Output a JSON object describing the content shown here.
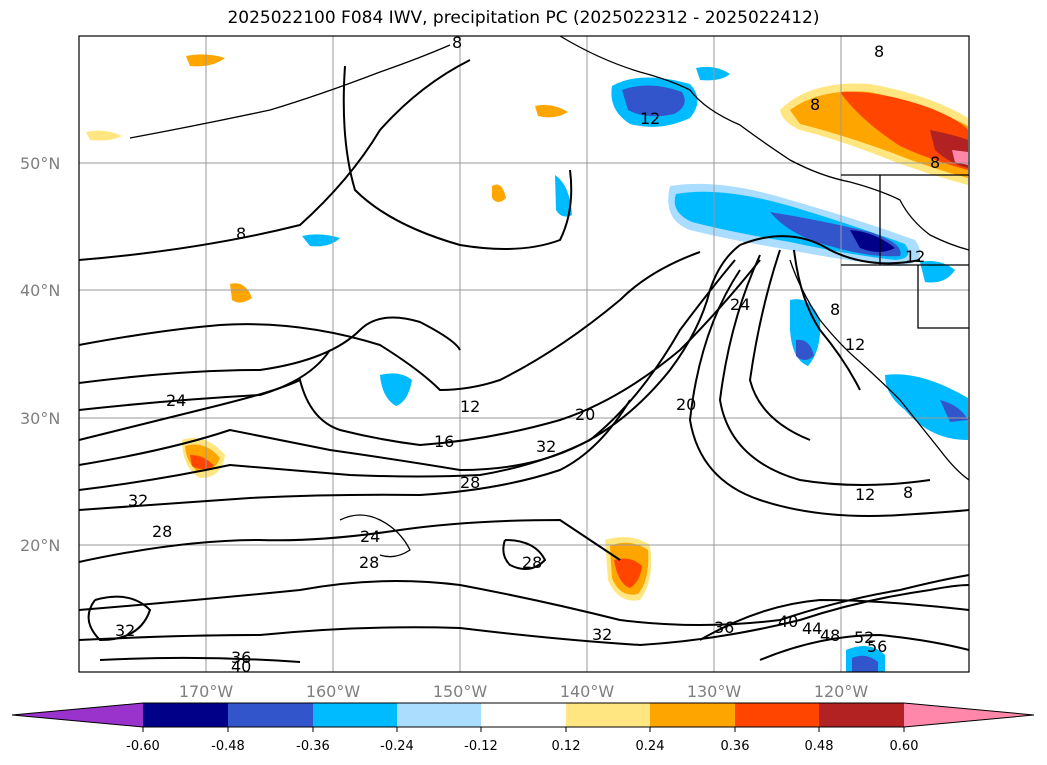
{
  "title": "2025022100 F084 IWV, precipitation PC (2025022312 - 2025022412)",
  "colors": {
    "land_coast": "#000000",
    "grid": "#999999",
    "tick_label": "#7f7f7f",
    "bins": [
      "#9933cc",
      "#000088",
      "#3355cc",
      "#00bbff",
      "#aaddff",
      "#ffffff",
      "#ffe680",
      "#ffa500",
      "#ff4500",
      "#b22222",
      "#ff88aa"
    ]
  },
  "map": {
    "projection": "PlateCarree",
    "lon_range": [
      "180°",
      "110°W"
    ],
    "lat_range": [
      "10°N",
      "60°N"
    ],
    "lat_ticks": [
      "50°N",
      "40°N",
      "30°N",
      "20°N"
    ],
    "lon_ticks": [
      "170°W",
      "160°W",
      "150°W",
      "140°W",
      "130°W",
      "120°W"
    ],
    "grid": true,
    "contour_variable": "IWV",
    "contour_labels": [
      "8",
      "12",
      "24",
      "8",
      "24",
      "12",
      "16",
      "20",
      "32",
      "28",
      "32",
      "28",
      "20",
      "12",
      "8",
      "24",
      "28",
      "32",
      "28",
      "36",
      "40",
      "44",
      "48",
      "52",
      "56",
      "32",
      "36",
      "40",
      "8",
      "8",
      "8",
      "8",
      "12",
      "12"
    ]
  },
  "colorbar": {
    "ticks": [
      "-0.60",
      "-0.48",
      "-0.36",
      "-0.24",
      "-0.12",
      "0.12",
      "0.24",
      "0.36",
      "0.48",
      "0.60"
    ],
    "extend": "both"
  }
}
